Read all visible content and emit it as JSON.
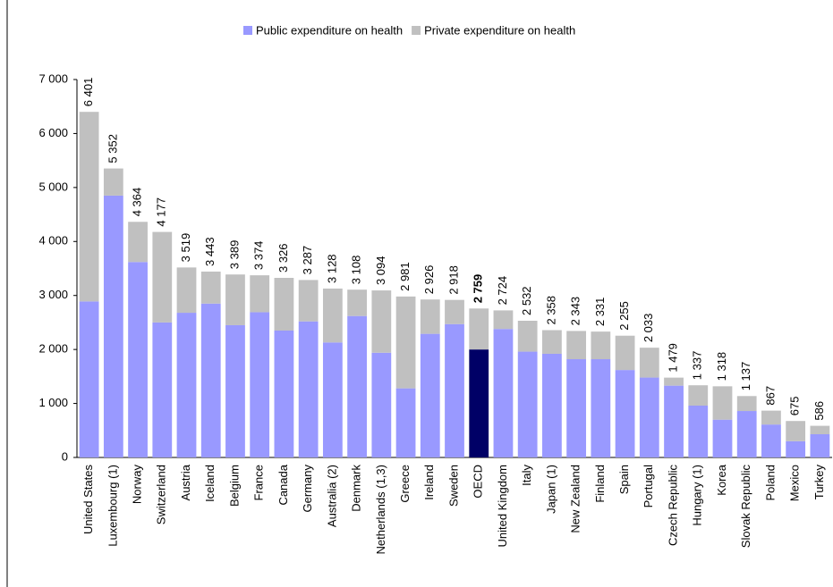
{
  "chart_data": {
    "type": "stacked_bar",
    "categories": [
      "United States",
      "Luxembourg (1)",
      "Norway",
      "Switzerland",
      "Austria",
      "Iceland",
      "Belgium",
      "France",
      "Canada",
      "Germany",
      "Australia (2)",
      "Denmark",
      "Netherlands (1,3)",
      "Greece",
      "Ireland",
      "Sweden",
      "OECD",
      "United Kingdom",
      "Italy",
      "Japan (1)",
      "New Zealand",
      "Finland",
      "Spain",
      "Portugal",
      "Czech Republic",
      "Hungary (1)",
      "Korea",
      "Slovak Republic",
      "Poland",
      "Mexico",
      "Turkey"
    ],
    "series": [
      {
        "name": "Public expenditure on health",
        "color": "#9999ff",
        "values": [
          2890,
          4850,
          3620,
          2500,
          2680,
          2850,
          2450,
          2690,
          2350,
          2520,
          2130,
          2620,
          1940,
          1280,
          2290,
          2470,
          2000,
          2380,
          1960,
          1920,
          1820,
          1820,
          1620,
          1480,
          1330,
          960,
          700,
          860,
          610,
          300,
          430
        ]
      },
      {
        "name": "Private expenditure on health",
        "color": "#c0c0c0",
        "values": [
          3511,
          502,
          744,
          1677,
          839,
          593,
          939,
          684,
          976,
          767,
          998,
          488,
          1154,
          1701,
          636,
          448,
          759,
          344,
          572,
          438,
          523,
          511,
          635,
          553,
          149,
          377,
          618,
          277,
          257,
          375,
          156
        ]
      }
    ],
    "total_labels": [
      "6 401",
      "5 352",
      "4 364",
      "4 177",
      "3 519",
      "3 443",
      "3 389",
      "3 374",
      "3 326",
      "3 287",
      "3 128",
      "3 108",
      "3 094",
      "2 981",
      "2 926",
      "2 918",
      "2 759",
      "2 724",
      "2 532",
      "2 358",
      "2 343",
      "2 331",
      "2 255",
      "2 033",
      "1 479",
      "1 337",
      "1 318",
      "1 137",
      "867",
      "675",
      "586"
    ],
    "highlight_index": 16,
    "highlight_color": "#000066",
    "ylim": [
      0,
      7000
    ],
    "yticks": [
      0,
      {
        "value": 1000,
        "label": "1 000"
      },
      {
        "value": 2000,
        "label": "2 000"
      },
      {
        "value": 3000,
        "label": "3 000"
      },
      {
        "value": 4000,
        "label": "4 000"
      },
      {
        "value": 5000,
        "label": "5 000"
      },
      {
        "value": 6000,
        "label": "6 000"
      },
      {
        "value": 7000,
        "label": "7 000"
      }
    ],
    "grid": false,
    "legend": "top"
  }
}
